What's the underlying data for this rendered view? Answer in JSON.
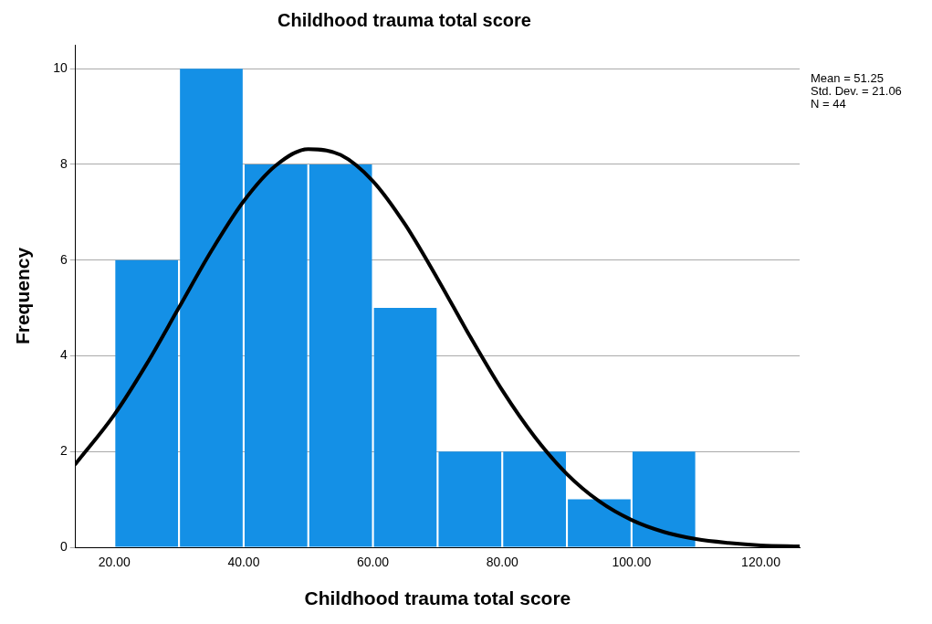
{
  "chart_data": {
    "type": "histogram",
    "title": "Childhood trauma total score",
    "xlabel": "Childhood trauma total score",
    "ylabel": "Frequency",
    "bins": [
      20,
      30,
      40,
      50,
      60,
      70,
      80,
      90,
      100,
      110
    ],
    "values": [
      6,
      10,
      8,
      8,
      5,
      2,
      2,
      1,
      2
    ],
    "color": "#1490e6",
    "xlim": [
      14,
      126
    ],
    "xticks": [
      {
        "value": 20,
        "label": "20.00"
      },
      {
        "value": 40,
        "label": "40.00"
      },
      {
        "value": 60,
        "label": "60.00"
      },
      {
        "value": 80,
        "label": "80.00"
      },
      {
        "value": 100,
        "label": "100.00"
      },
      {
        "value": 120,
        "label": "120.00"
      }
    ],
    "ylim": [
      0,
      10.5
    ],
    "yticks": [
      0,
      2,
      4,
      6,
      8,
      10
    ],
    "grid": "y",
    "legend": false,
    "series": [
      {
        "type": "line",
        "color": "#000000",
        "x": [
          14,
          20,
          25,
          30,
          35,
          40,
          45,
          50,
          55,
          60,
          65,
          70,
          75,
          80,
          85,
          90,
          95,
          100,
          105,
          110,
          115,
          120,
          126
        ],
        "values": [
          1.74,
          2.77,
          3.83,
          5.01,
          6.19,
          7.23,
          7.98,
          8.32,
          8.2,
          7.65,
          6.74,
          5.61,
          4.41,
          3.28,
          2.31,
          1.53,
          0.96,
          0.57,
          0.32,
          0.17,
          0.09,
          0.04,
          0.02
        ]
      }
    ],
    "annotations": [
      "Mean = 51.25",
      "Std. Dev. = 21.06",
      "N = 44"
    ]
  }
}
